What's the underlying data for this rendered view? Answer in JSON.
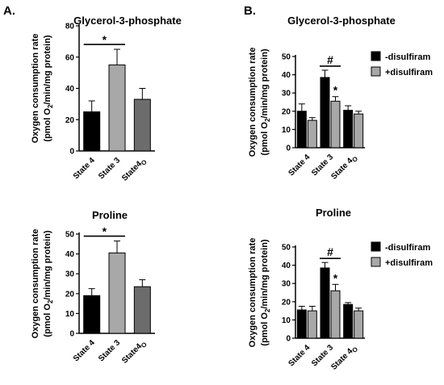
{
  "panels": {
    "A": "A.",
    "B": "B."
  },
  "chart_data": [
    {
      "type": "bar",
      "panel": "A",
      "title": "Glycerol-3-phosphate",
      "ylabel": "Oxygen consumption rate",
      "ylabel2_pre": "(pmol O",
      "ylabel2_sub": "2",
      "ylabel2_post": "/min/mg protein)",
      "categories": [
        "State 4",
        "State 3",
        "State4o"
      ],
      "category_labels": [
        {
          "main": "State 4",
          "sub": ""
        },
        {
          "main": "State 3",
          "sub": ""
        },
        {
          "main": "State4",
          "sub": "O"
        }
      ],
      "values": [
        25,
        55,
        33
      ],
      "errors": [
        7,
        10,
        7
      ],
      "colors": [
        "#000000",
        "#a8a8a8",
        "#6c6c6c"
      ],
      "ylim": [
        0,
        80
      ],
      "yticks": [
        0,
        20,
        40,
        60,
        80
      ],
      "significance": [
        {
          "from": 0,
          "to": 1,
          "label": "*"
        }
      ]
    },
    {
      "type": "bar",
      "panel": "A",
      "title": "Proline",
      "ylabel": "Oxygen consumption rate",
      "ylabel2_pre": "(pmol O",
      "ylabel2_sub": "2",
      "ylabel2_post": "/min/mg protein)",
      "categories": [
        "State 4",
        "State 3",
        "State4o"
      ],
      "category_labels": [
        {
          "main": "State 4",
          "sub": ""
        },
        {
          "main": "State 3",
          "sub": ""
        },
        {
          "main": "State4",
          "sub": "O"
        }
      ],
      "values": [
        19,
        40.5,
        23.5
      ],
      "errors": [
        3.5,
        6,
        3.5
      ],
      "colors": [
        "#000000",
        "#a8a8a8",
        "#6c6c6c"
      ],
      "ylim": [
        0,
        50
      ],
      "yticks": [
        0,
        10,
        20,
        30,
        40,
        50
      ],
      "significance": [
        {
          "from": 0,
          "to": 1,
          "label": "*"
        }
      ]
    },
    {
      "type": "bar",
      "panel": "B",
      "title": "Glycerol-3-phosphate",
      "ylabel": "Oxygen consumption rate",
      "ylabel2_pre": "(pmol O",
      "ylabel2_sub": "2",
      "ylabel2_post": "/min/mg protein)",
      "categories": [
        "State 4",
        "State 3",
        "State 4o"
      ],
      "category_labels": [
        {
          "main": "State 4",
          "sub": ""
        },
        {
          "main": "State 3",
          "sub": ""
        },
        {
          "main": "State 4",
          "sub": "O"
        }
      ],
      "series": [
        {
          "name": "-disulfiram",
          "values": [
            20,
            38.5,
            20.5
          ],
          "errors": [
            4,
            4,
            2.5
          ],
          "color": "#000000"
        },
        {
          "name": "+disulfiram",
          "values": [
            15,
            25.5,
            18.5
          ],
          "errors": [
            1.5,
            2.5,
            1.5
          ],
          "color": "#a8a8a8"
        }
      ],
      "ylim": [
        0,
        50
      ],
      "yticks": [
        0,
        10,
        20,
        30,
        40,
        50
      ],
      "annotations": [
        {
          "type": "bracket",
          "category": 1,
          "label": "#"
        },
        {
          "type": "star",
          "category": 1,
          "series": 1,
          "label": "*"
        }
      ],
      "legend": "top-right"
    },
    {
      "type": "bar",
      "panel": "B",
      "title": "Proline",
      "ylabel": "Oxygen consumption rate",
      "ylabel2_pre": "(pmol O",
      "ylabel2_sub": "2",
      "ylabel2_post": "/min/mg protein)",
      "categories": [
        "State 4",
        "State 3",
        "State 4o"
      ],
      "category_labels": [
        {
          "main": "State 4",
          "sub": ""
        },
        {
          "main": "State 3",
          "sub": ""
        },
        {
          "main": "State 4",
          "sub": "O"
        }
      ],
      "series": [
        {
          "name": "-disulfiram",
          "values": [
            15.5,
            38.5,
            18.5
          ],
          "errors": [
            2,
            3,
            1
          ],
          "color": "#000000"
        },
        {
          "name": "+disulfiram",
          "values": [
            15,
            26,
            15
          ],
          "errors": [
            2.5,
            3.5,
            1.5
          ],
          "color": "#a8a8a8"
        }
      ],
      "ylim": [
        0,
        50
      ],
      "yticks": [
        0,
        10,
        20,
        30,
        40,
        50
      ],
      "annotations": [
        {
          "type": "bracket",
          "category": 1,
          "label": "#"
        },
        {
          "type": "star",
          "category": 1,
          "series": 1,
          "label": "*"
        }
      ],
      "legend": "top-right"
    }
  ]
}
